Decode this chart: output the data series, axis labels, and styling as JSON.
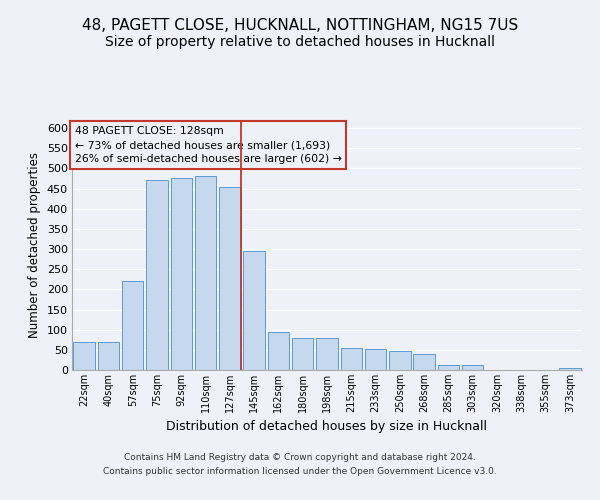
{
  "title1": "48, PAGETT CLOSE, HUCKNALL, NOTTINGHAM, NG15 7US",
  "title2": "Size of property relative to detached houses in Hucknall",
  "xlabel": "Distribution of detached houses by size in Hucknall",
  "ylabel": "Number of detached properties",
  "footer1": "Contains HM Land Registry data © Crown copyright and database right 2024.",
  "footer2": "Contains public sector information licensed under the Open Government Licence v3.0.",
  "annotation_line1": "48 PAGETT CLOSE: 128sqm",
  "annotation_line2": "← 73% of detached houses are smaller (1,693)",
  "annotation_line3": "26% of semi-detached houses are larger (602) →",
  "bar_labels": [
    "22sqm",
    "40sqm",
    "57sqm",
    "75sqm",
    "92sqm",
    "110sqm",
    "127sqm",
    "145sqm",
    "162sqm",
    "180sqm",
    "198sqm",
    "215sqm",
    "233sqm",
    "250sqm",
    "268sqm",
    "285sqm",
    "303sqm",
    "320sqm",
    "338sqm",
    "355sqm",
    "373sqm"
  ],
  "bar_values": [
    70,
    70,
    220,
    470,
    475,
    480,
    455,
    295,
    95,
    80,
    80,
    55,
    53,
    48,
    40,
    12,
    12,
    0,
    0,
    0,
    5
  ],
  "bar_color": "#c5d8ed",
  "bar_edge_color": "#5b9bd5",
  "vline_color": "#c0392b",
  "vline_x_index": 6,
  "annotation_box_color": "#c0392b",
  "ylim": [
    0,
    620
  ],
  "yticks": [
    0,
    50,
    100,
    150,
    200,
    250,
    300,
    350,
    400,
    450,
    500,
    550,
    600
  ],
  "bg_color": "#eef2f8",
  "grid_color": "#ffffff",
  "title1_fontsize": 11,
  "title2_fontsize": 10
}
